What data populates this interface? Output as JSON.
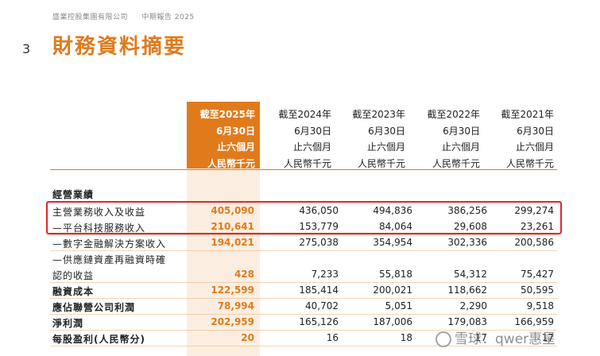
{
  "header": {
    "company": "盛業控股集團有限公司",
    "report": "中期報告 2025"
  },
  "page_number": "3",
  "title": "財務資料摘要",
  "columns": [
    {
      "lines": [
        "截至2025年",
        "6月30日",
        "止六個月",
        "人民幣千元"
      ]
    },
    {
      "lines": [
        "截至2024年",
        "6月30日",
        "止六個月",
        "人民幣千元"
      ]
    },
    {
      "lines": [
        "截至2023年",
        "6月30日",
        "止六個月",
        "人民幣千元"
      ]
    },
    {
      "lines": [
        "截至2022年",
        "6月30日",
        "止六個月",
        "人民幣千元"
      ]
    },
    {
      "lines": [
        "截至2021年",
        "6月30日",
        "止六個月",
        "人民幣千元"
      ]
    }
  ],
  "section_label": "經營業績",
  "rows": [
    {
      "label": "主營業務收入及收益",
      "values": [
        "405,090",
        "436,050",
        "494,836",
        "386,256",
        "299,274"
      ]
    },
    {
      "label": "—平台科技服務收入",
      "values": [
        "210,641",
        "153,779",
        "84,064",
        "29,608",
        "23,261"
      ]
    },
    {
      "label": "—數字金融解決方案收入",
      "values": [
        "194,021",
        "275,038",
        "354,954",
        "302,336",
        "200,586"
      ]
    },
    {
      "label": "—供應鏈資產再融資時確",
      "values": [
        "",
        "",
        "",
        "",
        ""
      ]
    },
    {
      "label": "認的收益",
      "values": [
        "428",
        "7,233",
        "55,818",
        "54,312",
        "75,427"
      ]
    },
    {
      "label": "融資成本",
      "values": [
        "122,599",
        "185,414",
        "200,021",
        "118,662",
        "50,595"
      ]
    },
    {
      "label": "應佔聯營公司利潤",
      "values": [
        "78,994",
        "40,702",
        "5,051",
        "2,290",
        "9,518"
      ]
    },
    {
      "label": "淨利潤",
      "values": [
        "202,959",
        "165,126",
        "187,006",
        "179,083",
        "166,959"
      ]
    },
    {
      "label": "每股盈利(人民幣分)",
      "values": [
        "20",
        "16",
        "18",
        "17",
        "17"
      ]
    }
  ],
  "watermark": "雪球：qwer惠星",
  "colors": {
    "accent": "#e07b1c",
    "highlight_box": "#e0262e",
    "highlight_fill": "#fbeee0"
  }
}
